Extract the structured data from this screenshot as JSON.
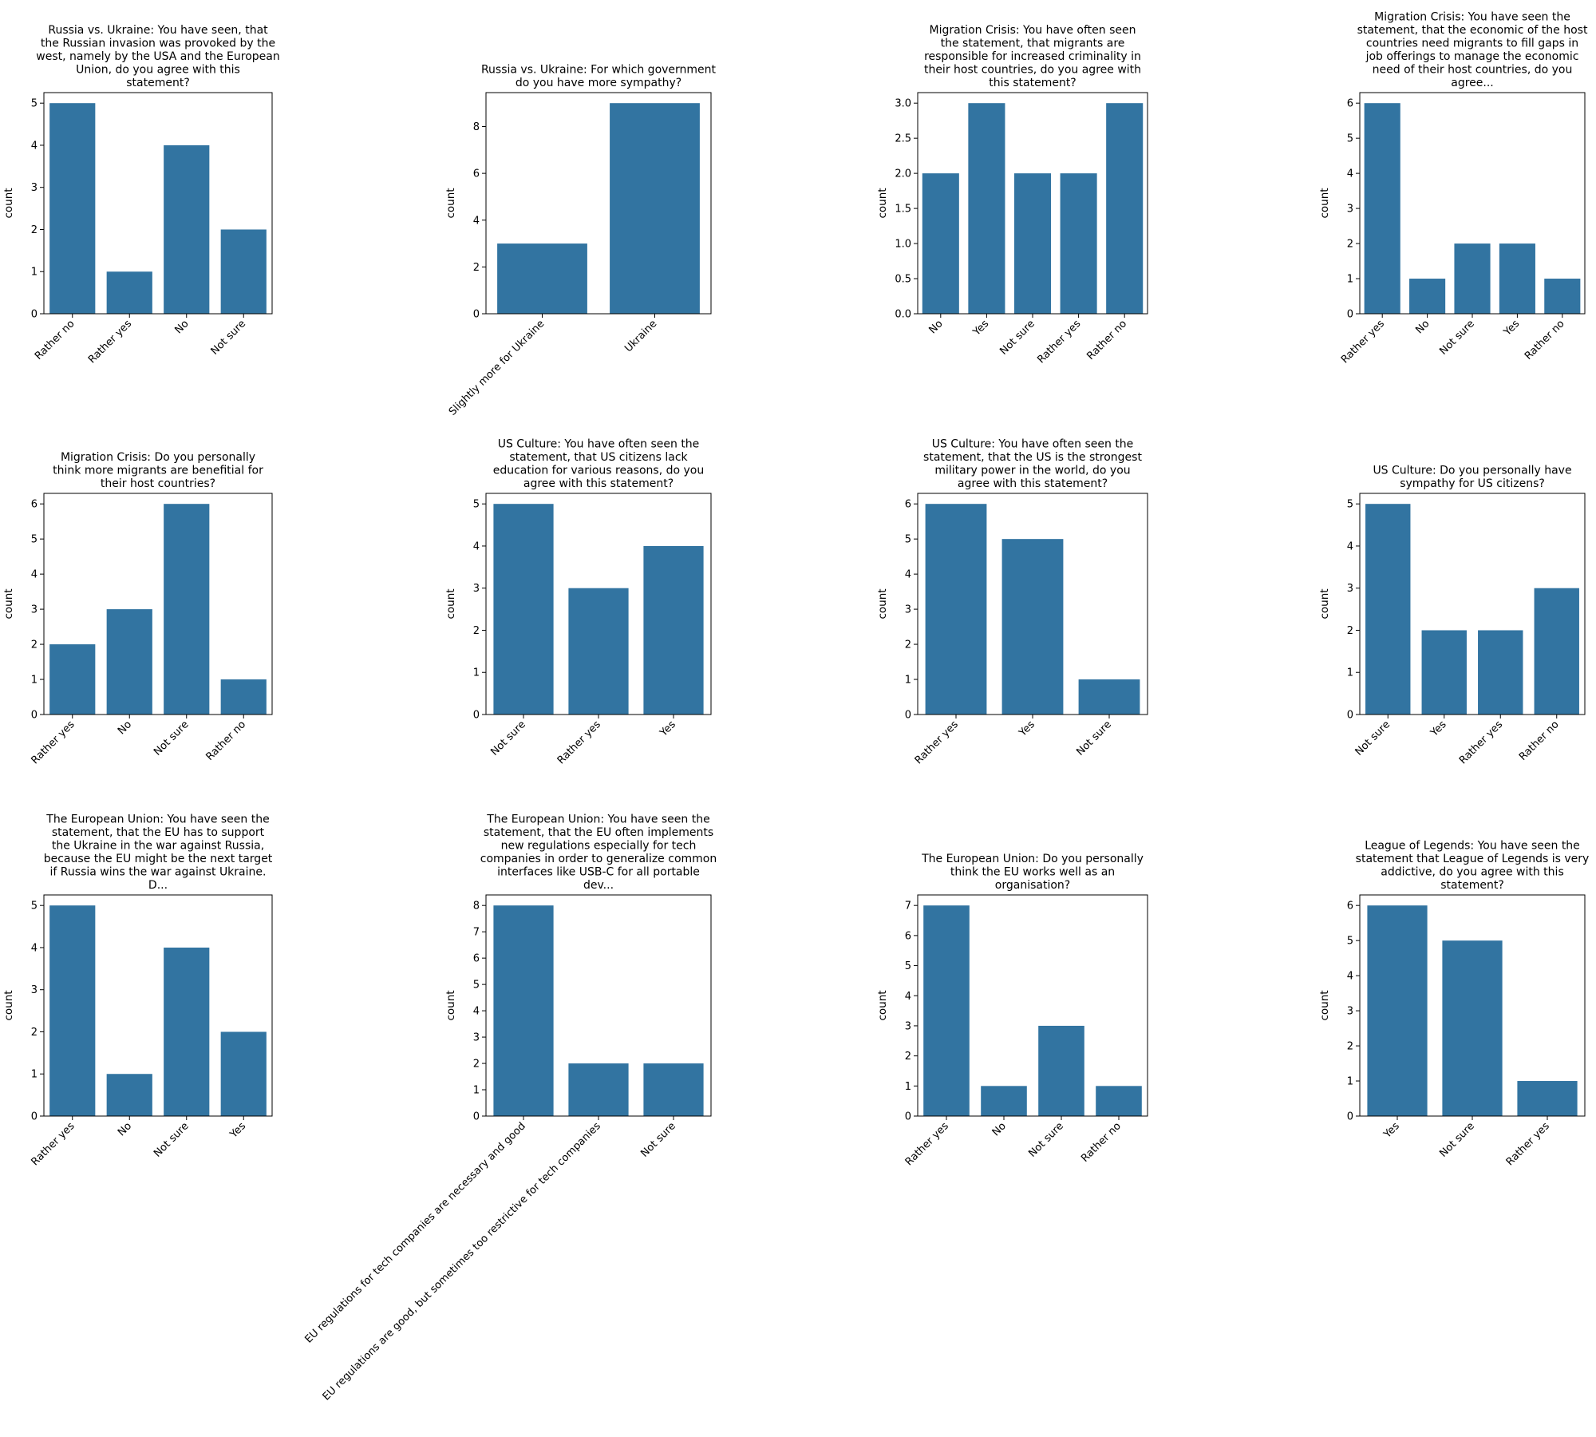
{
  "colors": {
    "bar": "#3274a1",
    "axis": "#000000",
    "background": "#ffffff"
  },
  "chart_data": [
    {
      "type": "bar",
      "title": [
        "Russia vs. Ukraine: You have seen, that",
        "the Russian invasion was provoked by the",
        "west, namely by the USA and the European",
        "Union, do you agree with this",
        "statement?"
      ],
      "categories": [
        "Rather no",
        "Rather yes",
        "No",
        "Not sure"
      ],
      "values": [
        5,
        1,
        4,
        2
      ],
      "ylabel": "count",
      "ylim": [
        0,
        5.25
      ],
      "yticks": [
        "0",
        "1",
        "2",
        "3",
        "4",
        "5"
      ]
    },
    {
      "type": "bar",
      "title": [
        "Russia vs. Ukraine: For which government",
        "do you have more sympathy?"
      ],
      "categories": [
        "Slightly more for Ukraine",
        "Ukraine"
      ],
      "values": [
        3,
        9
      ],
      "ylabel": "count",
      "ylim": [
        0,
        9.45
      ],
      "yticks": [
        "0",
        "2",
        "4",
        "6",
        "8"
      ]
    },
    {
      "type": "bar",
      "title": [
        "Migration Crisis: You have often seen",
        "the statement, that migrants are",
        "responsible for increased criminality in",
        "their host countries, do you agree with",
        "this statement?"
      ],
      "categories": [
        "No",
        "Yes",
        "Not sure",
        "Rather yes",
        "Rather no"
      ],
      "values": [
        2,
        3,
        2,
        2,
        3
      ],
      "ylabel": "count",
      "ylim": [
        0,
        3.15
      ],
      "yticks": [
        "0.0",
        "0.5",
        "1.0",
        "1.5",
        "2.0",
        "2.5",
        "3.0"
      ]
    },
    {
      "type": "bar",
      "title": [
        "Migration Crisis: You have seen the",
        "statement, that the economic of the host",
        "countries need migrants to fill gaps in",
        "job offerings to manage the economic",
        "need of their host countries, do you",
        "agree..."
      ],
      "categories": [
        "Rather yes",
        "No",
        "Not sure",
        "Yes",
        "Rather no"
      ],
      "values": [
        6,
        1,
        2,
        2,
        1
      ],
      "ylabel": "count",
      "ylim": [
        0,
        6.3
      ],
      "yticks": [
        "0",
        "1",
        "2",
        "3",
        "4",
        "5",
        "6"
      ]
    },
    {
      "type": "bar",
      "title": [
        "Migration Crisis: Do you personally",
        "think more migrants are benefitial for",
        "their host countries?"
      ],
      "categories": [
        "Rather yes",
        "No",
        "Not sure",
        "Rather no"
      ],
      "values": [
        2,
        3,
        6,
        1
      ],
      "ylabel": "count",
      "ylim": [
        0,
        6.3
      ],
      "yticks": [
        "0",
        "1",
        "2",
        "3",
        "4",
        "5",
        "6"
      ]
    },
    {
      "type": "bar",
      "title": [
        "US Culture: You have often seen the",
        "statement, that US citizens lack",
        "education for various reasons, do you",
        "agree with this statement?"
      ],
      "categories": [
        "Not sure",
        "Rather yes",
        "Yes"
      ],
      "values": [
        5,
        3,
        4
      ],
      "ylabel": "count",
      "ylim": [
        0,
        5.25
      ],
      "yticks": [
        "0",
        "1",
        "2",
        "3",
        "4",
        "5"
      ]
    },
    {
      "type": "bar",
      "title": [
        "US Culture: You have often seen the",
        "statement, that the US is the strongest",
        "military power in the world, do you",
        "agree with this statement?"
      ],
      "categories": [
        "Rather yes",
        "Yes",
        "Not sure"
      ],
      "values": [
        6,
        5,
        1
      ],
      "ylabel": "count",
      "ylim": [
        0,
        6.3
      ],
      "yticks": [
        "0",
        "1",
        "2",
        "3",
        "4",
        "5",
        "6"
      ]
    },
    {
      "type": "bar",
      "title": [
        "US Culture: Do you personally have",
        "sympathy for US citizens?"
      ],
      "categories": [
        "Not sure",
        "Yes",
        "Rather yes",
        "Rather no"
      ],
      "values": [
        5,
        2,
        2,
        3
      ],
      "ylabel": "count",
      "ylim": [
        0,
        5.25
      ],
      "yticks": [
        "0",
        "1",
        "2",
        "3",
        "4",
        "5"
      ]
    },
    {
      "type": "bar",
      "title": [
        "The European Union: You have seen the",
        "statement, that the EU has to support",
        "the Ukraine in the war against Russia,",
        "because the EU might be the next target",
        "if Russia wins the war against Ukraine.",
        "D..."
      ],
      "categories": [
        "Rather yes",
        "No",
        "Not sure",
        "Yes"
      ],
      "values": [
        5,
        1,
        4,
        2
      ],
      "ylabel": "count",
      "ylim": [
        0,
        5.25
      ],
      "yticks": [
        "0",
        "1",
        "2",
        "3",
        "4",
        "5"
      ]
    },
    {
      "type": "bar",
      "title": [
        "The European Union: You have seen the",
        "statement, that the EU often implements",
        "new regulations especially for tech",
        "companies in order to generalize common",
        "interfaces like USB-C for all portable",
        "dev..."
      ],
      "categories": [
        "EU regulations for tech companies are necessary and good",
        "EU regulations are good, but sometimes too restrictive for tech companies",
        "Not sure"
      ],
      "values": [
        8,
        2,
        2
      ],
      "ylabel": "count",
      "ylim": [
        0,
        8.4
      ],
      "yticks": [
        "0",
        "1",
        "2",
        "3",
        "4",
        "5",
        "6",
        "7",
        "8"
      ]
    },
    {
      "type": "bar",
      "title": [
        "The European Union: Do you personally",
        "think the EU works well as an",
        "organisation?"
      ],
      "categories": [
        "Rather yes",
        "No",
        "Not sure",
        "Rather no"
      ],
      "values": [
        7,
        1,
        3,
        1
      ],
      "ylabel": "count",
      "ylim": [
        0,
        7.35
      ],
      "yticks": [
        "0",
        "1",
        "2",
        "3",
        "4",
        "5",
        "6",
        "7"
      ]
    },
    {
      "type": "bar",
      "title": [
        "League of Legends: You have seen the",
        "statement that League of Legends is very",
        "addictive, do you agree with this",
        "statement?"
      ],
      "categories": [
        "Yes",
        "Not sure",
        "Rather yes"
      ],
      "values": [
        6,
        5,
        1
      ],
      "ylabel": "count",
      "ylim": [
        0,
        6.3
      ],
      "yticks": [
        "0",
        "1",
        "2",
        "3",
        "4",
        "5",
        "6"
      ]
    }
  ]
}
